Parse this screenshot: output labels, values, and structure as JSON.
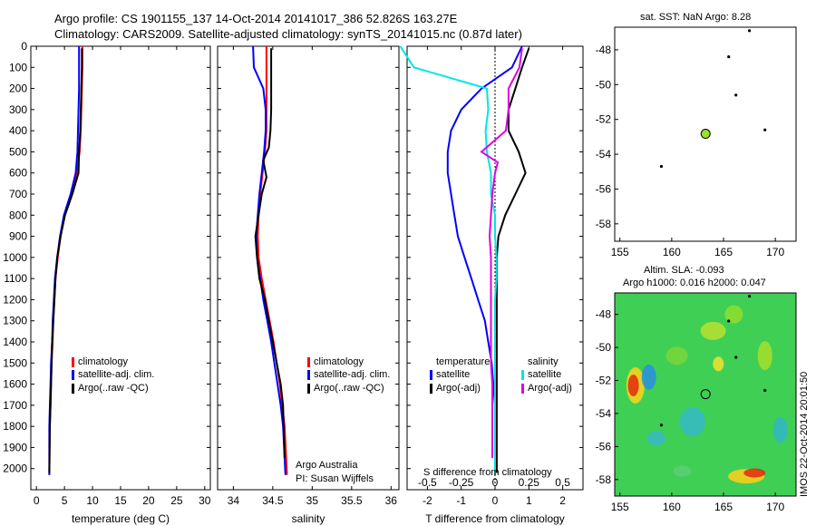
{
  "header": {
    "title_line1": "Argo profile: CS 1901155_137 14-Oct-2014 20141017_386 52.826S 163.27E",
    "title_line2": "Climatology: CARS2009. Satellite-adjusted climatology: synTS_20141015.nc (0.87d later)"
  },
  "colors": {
    "climatology": "#ff0000",
    "satellite": "#0000ff",
    "argo": "#000000",
    "sal_satellite": "#00e5e5",
    "sal_argo": "#e000e0"
  },
  "chart_data": [
    {
      "id": "temperature",
      "type": "line",
      "xlabel": "temperature (deg C)",
      "ylabel": "",
      "xlim": [
        -1,
        31
      ],
      "ylim": [
        2100,
        0
      ],
      "xticks": [
        "0",
        "5",
        "10",
        "15",
        "20",
        "25",
        "30"
      ],
      "xtick_values": [
        0,
        5,
        10,
        15,
        20,
        25,
        30
      ],
      "yticks": [
        "0",
        "100",
        "200",
        "300",
        "400",
        "500",
        "600",
        "700",
        "800",
        "900",
        "1000",
        "1100",
        "1200",
        "1300",
        "1400",
        "1500",
        "1600",
        "1700",
        "1800",
        "1900",
        "2000"
      ],
      "ytick_values": [
        0,
        100,
        200,
        300,
        400,
        500,
        600,
        700,
        800,
        900,
        1000,
        1100,
        1200,
        1300,
        1400,
        1500,
        1600,
        1700,
        1800,
        1900,
        2000
      ],
      "legend": [
        "climatology",
        "satellite-adj. clim.",
        "Argo(..raw -QC)"
      ],
      "series": [
        {
          "name": "climatology",
          "color": "red",
          "x": [
            8.2,
            8.2,
            8.1,
            8.0,
            7.9,
            7.7,
            7.2,
            6.2,
            5.0,
            4.3,
            3.8,
            3.4,
            3.2,
            3.0,
            2.9,
            2.7,
            2.6,
            2.5,
            2.4,
            2.3
          ],
          "y": [
            0,
            100,
            200,
            300,
            400,
            500,
            600,
            700,
            800,
            900,
            1000,
            1100,
            1200,
            1300,
            1400,
            1500,
            1600,
            1700,
            1800,
            2030
          ]
        },
        {
          "name": "satellite-adj. clim.",
          "color": "blue",
          "x": [
            7.6,
            7.6,
            7.6,
            7.5,
            7.4,
            7.3,
            7.0,
            6.1,
            4.9,
            4.2,
            3.7,
            3.3,
            3.1,
            2.9,
            2.8,
            2.6,
            2.5,
            2.4,
            2.3,
            2.3
          ],
          "y": [
            0,
            100,
            200,
            300,
            400,
            500,
            600,
            700,
            800,
            900,
            1000,
            1100,
            1200,
            1300,
            1400,
            1500,
            1600,
            1700,
            1800,
            2030
          ]
        },
        {
          "name": "Argo(..raw -QC)",
          "color": "black",
          "x": [
            8.1,
            8.1,
            8.0,
            7.9,
            7.8,
            7.6,
            7.5,
            6.4,
            5.1,
            4.3,
            3.7,
            3.4,
            3.2,
            3.0,
            2.8,
            2.7,
            2.6,
            2.5,
            2.4,
            2.3
          ],
          "y": [
            10,
            100,
            200,
            300,
            400,
            500,
            600,
            700,
            800,
            900,
            1000,
            1100,
            1200,
            1300,
            1400,
            1500,
            1600,
            1700,
            1800,
            2020
          ]
        }
      ]
    },
    {
      "id": "salinity",
      "type": "line",
      "xlabel": "salinity",
      "xlim": [
        33.8,
        36.1
      ],
      "ylim": [
        2100,
        0
      ],
      "xticks": [
        "34",
        "34.5",
        "35",
        "35.5",
        "36"
      ],
      "xtick_values": [
        34,
        34.5,
        35,
        35.5,
        36
      ],
      "legend": [
        "climatology",
        "satellite-adj. clim.",
        "Argo(..raw -QC)"
      ],
      "annotation": [
        "Argo Australia",
        "PI: Susan Wijffels"
      ],
      "series": [
        {
          "name": "climatology",
          "color": "red",
          "x": [
            34.42,
            34.42,
            34.42,
            34.42,
            34.42,
            34.4,
            34.37,
            34.34,
            34.32,
            34.31,
            34.32,
            34.36,
            34.41,
            34.46,
            34.51,
            34.55,
            34.59,
            34.62,
            34.65,
            34.68
          ],
          "y": [
            0,
            100,
            200,
            300,
            400,
            500,
            600,
            700,
            800,
            900,
            1000,
            1100,
            1200,
            1300,
            1400,
            1500,
            1600,
            1700,
            1800,
            2030
          ]
        },
        {
          "name": "satellite-adj. clim.",
          "color": "blue",
          "x": [
            34.25,
            34.26,
            34.38,
            34.41,
            34.41,
            34.39,
            34.36,
            34.33,
            34.31,
            34.29,
            34.3,
            34.34,
            34.38,
            34.43,
            34.48,
            34.52,
            34.56,
            34.6,
            34.63,
            34.66
          ],
          "y": [
            0,
            100,
            200,
            300,
            400,
            500,
            600,
            700,
            800,
            900,
            1000,
            1100,
            1200,
            1300,
            1400,
            1500,
            1600,
            1700,
            1800,
            2030
          ]
        },
        {
          "name": "Argo(..raw -QC)",
          "color": "black",
          "x": [
            34.48,
            34.48,
            34.48,
            34.48,
            34.47,
            34.45,
            34.38,
            34.42,
            34.36,
            34.32,
            34.28,
            34.3,
            34.33,
            34.4,
            34.45,
            34.5,
            34.55,
            34.6,
            34.63,
            34.65
          ],
          "y": [
            10,
            100,
            200,
            300,
            400,
            480,
            540,
            620,
            700,
            800,
            900,
            1000,
            1100,
            1200,
            1300,
            1400,
            1500,
            1600,
            1700,
            1950
          ]
        }
      ]
    },
    {
      "id": "differences",
      "type": "line",
      "xlabel": "T difference from climatology",
      "xlabel_top": "S difference from climatology",
      "xlim": [
        -2.6,
        2.6
      ],
      "ylim": [
        2100,
        0
      ],
      "xticks": [
        "-2",
        "-1",
        "0",
        "1",
        "2"
      ],
      "xtick_values": [
        -2,
        -1,
        0,
        1,
        2
      ],
      "s_ticks": [
        "-0.5",
        "-0.25",
        "0",
        "0.25",
        "0.5"
      ],
      "s_tick_values": [
        -0.5,
        -0.25,
        0,
        0.25,
        0.5
      ],
      "legend_left_title": "temperature",
      "legend_left": [
        "satellite",
        "Argo(-adj)"
      ],
      "legend_right_title": "salinity",
      "legend_right": [
        "satellite",
        "Argo(-adj)"
      ],
      "series": [
        {
          "name": "T satellite",
          "color": "blue",
          "x": [
            0.8,
            0.5,
            -0.4,
            -1.0,
            -1.3,
            -1.4,
            -1.4,
            -1.3,
            -1.2,
            -1.1,
            -0.9,
            -0.7,
            -0.5,
            -0.3,
            -0.2,
            -0.1,
            -0.05,
            0.0,
            0.0
          ],
          "y": [
            0,
            100,
            200,
            300,
            400,
            500,
            600,
            700,
            800,
            900,
            1000,
            1100,
            1200,
            1300,
            1400,
            1500,
            1600,
            1700,
            2030
          ]
        },
        {
          "name": "T Argo(-adj)",
          "color": "black",
          "x": [
            1.0,
            0.8,
            0.6,
            0.4,
            0.4,
            0.7,
            0.9,
            0.6,
            0.3,
            0.1,
            0.05,
            0.05,
            0.05,
            0.05,
            0.05,
            0.05,
            0.05,
            0.05,
            0.05
          ],
          "y": [
            10,
            100,
            200,
            300,
            400,
            500,
            600,
            700,
            800,
            900,
            1000,
            1100,
            1200,
            1300,
            1400,
            1500,
            1600,
            1700,
            2020
          ]
        },
        {
          "name": "S satellite",
          "color": "cyan",
          "x": [
            -0.7,
            -0.6,
            -0.06,
            -0.05,
            -0.07,
            -0.06,
            -0.03,
            -0.03,
            0.0,
            0.0,
            0.01,
            0.01,
            0.0,
            0.0,
            0.0,
            0.0,
            0.0,
            0.0
          ],
          "y": [
            0,
            100,
            200,
            300,
            400,
            500,
            600,
            700,
            800,
            900,
            1000,
            1100,
            1200,
            1300,
            1400,
            1500,
            1600,
            2030
          ]
        },
        {
          "name": "S Argo(-adj)",
          "color": "magenta",
          "x": [
            0.2,
            0.18,
            0.1,
            0.1,
            0.08,
            -0.1,
            0.02,
            0.0,
            -0.02,
            -0.03,
            -0.04,
            -0.03,
            -0.03,
            -0.03,
            -0.03,
            -0.03,
            -0.03,
            -0.02,
            -0.02
          ],
          "y": [
            10,
            100,
            200,
            300,
            400,
            500,
            550,
            600,
            700,
            800,
            900,
            1000,
            1100,
            1200,
            1300,
            1400,
            1500,
            1600,
            1950
          ]
        }
      ]
    }
  ],
  "sst_map": {
    "title": "sat. SST: NaN Argo: 8.28",
    "xticks": [
      "155",
      "160",
      "165",
      "170"
    ],
    "xtick_values": [
      155,
      160,
      165,
      170
    ],
    "yticks": [
      "-48",
      "-50",
      "-52",
      "-54",
      "-56",
      "-58"
    ],
    "ytick_values": [
      -48,
      -50,
      -52,
      -54,
      -56,
      -58
    ],
    "xlim": [
      154.5,
      172
    ],
    "ylim": [
      -59,
      -46.7
    ],
    "float_lon": 163.27,
    "float_lat": -52.826
  },
  "sla_map": {
    "title_line1": "Altim. SLA: -0.093",
    "title_line2": "Argo h1000: 0.016 h2000: 0.047",
    "side_label": "IMOS 22-Oct-2014 20:01:50",
    "xticks": [
      "155",
      "160",
      "165",
      "170"
    ],
    "xtick_values": [
      155,
      160,
      165,
      170
    ],
    "yticks": [
      "-48",
      "-50",
      "-52",
      "-54",
      "-56",
      "-58"
    ],
    "ytick_values": [
      -48,
      -50,
      -52,
      -54,
      -56,
      -58
    ],
    "xlim": [
      154.5,
      172
    ],
    "ylim": [
      -59,
      -46.7
    ],
    "float_lon": 163.27,
    "float_lat": -52.826
  }
}
